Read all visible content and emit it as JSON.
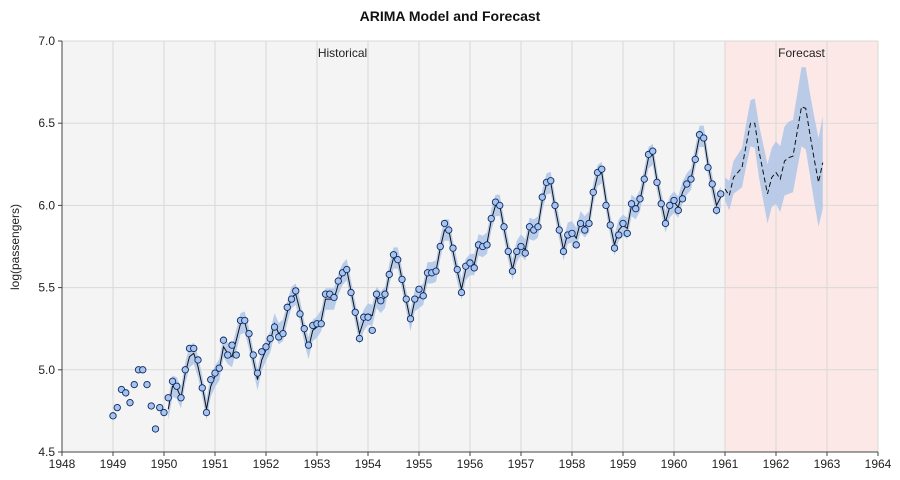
{
  "chart_data": {
    "type": "line",
    "title": "ARIMA Model and Forecast",
    "xlabel": "",
    "ylabel": "log(passengers)",
    "xlim": [
      1948,
      1964
    ],
    "ylim": [
      4.5,
      7.0
    ],
    "x_ticks": [
      "1948",
      "1949",
      "1950",
      "1951",
      "1952",
      "1953",
      "1954",
      "1955",
      "1956",
      "1957",
      "1958",
      "1959",
      "1960",
      "1961",
      "1962",
      "1963",
      "1964"
    ],
    "y_ticks": [
      "4.5",
      "5.0",
      "5.5",
      "6.0",
      "6.5",
      "7.0"
    ],
    "grid": true,
    "colors": {
      "historical_bg": "#f4f4f4",
      "forecast_bg": "#fde8e8",
      "band": "#aec6e8",
      "points_stroke": "#0b2a66",
      "points_fill": "#a9c4ec",
      "fit_line": "#111111",
      "forecast_line": "#111111",
      "grid": "#d9d9d9"
    },
    "regions": [
      {
        "label": "Historical",
        "from": 1948,
        "to": 1961
      },
      {
        "label": "Forecast",
        "from": 1961,
        "to": 1964
      }
    ],
    "start": [
      1949,
      1
    ],
    "observed": [
      4.72,
      4.77,
      4.88,
      4.86,
      4.8,
      4.91,
      5.0,
      5.0,
      4.91,
      4.78,
      4.64,
      4.77,
      4.74,
      4.83,
      4.93,
      4.9,
      4.83,
      5.0,
      5.13,
      5.13,
      5.06,
      4.89,
      4.74,
      4.94,
      4.98,
      5.01,
      5.18,
      5.09,
      5.15,
      5.09,
      5.3,
      5.3,
      5.22,
      5.09,
      4.98,
      5.11,
      5.14,
      5.19,
      5.26,
      5.2,
      5.22,
      5.38,
      5.43,
      5.48,
      5.34,
      5.25,
      5.15,
      5.27,
      5.28,
      5.28,
      5.46,
      5.46,
      5.44,
      5.54,
      5.59,
      5.61,
      5.47,
      5.35,
      5.19,
      5.32,
      5.32,
      5.24,
      5.46,
      5.42,
      5.46,
      5.58,
      5.7,
      5.67,
      5.55,
      5.43,
      5.31,
      5.43,
      5.49,
      5.45,
      5.59,
      5.59,
      5.6,
      5.75,
      5.89,
      5.85,
      5.74,
      5.61,
      5.47,
      5.63,
      5.65,
      5.62,
      5.76,
      5.75,
      5.76,
      5.92,
      6.02,
      6.0,
      5.87,
      5.72,
      5.6,
      5.72,
      5.75,
      5.71,
      5.87,
      5.85,
      5.87,
      6.05,
      6.14,
      6.15,
      6.0,
      5.85,
      5.72,
      5.82,
      5.83,
      5.76,
      5.89,
      5.85,
      5.89,
      6.08,
      6.2,
      6.22,
      6.0,
      5.88,
      5.74,
      5.82,
      5.89,
      5.83,
      6.01,
      5.98,
      6.04,
      6.16,
      6.31,
      6.33,
      6.14,
      6.01,
      5.89,
      6.0,
      6.03,
      5.97,
      6.04,
      6.13,
      6.16,
      6.28,
      6.43,
      6.41,
      6.23,
      6.13,
      5.97,
      6.07
    ],
    "fitted": [
      null,
      null,
      null,
      null,
      null,
      null,
      null,
      null,
      null,
      null,
      null,
      null,
      null,
      4.76,
      4.9,
      4.89,
      4.83,
      4.98,
      5.08,
      5.1,
      5.02,
      4.9,
      4.76,
      4.9,
      4.96,
      5.0,
      5.14,
      5.1,
      5.08,
      5.18,
      5.28,
      5.29,
      5.19,
      5.06,
      4.94,
      5.06,
      5.12,
      5.17,
      5.28,
      5.22,
      5.24,
      5.35,
      5.44,
      5.46,
      5.36,
      5.23,
      5.13,
      5.24,
      5.26,
      5.3,
      5.43,
      5.43,
      5.43,
      5.52,
      5.58,
      5.61,
      5.48,
      5.35,
      5.22,
      5.3,
      5.34,
      5.33,
      5.44,
      5.41,
      5.44,
      5.58,
      5.68,
      5.68,
      5.55,
      5.42,
      5.3,
      5.42,
      5.44,
      5.46,
      5.59,
      5.59,
      5.6,
      5.74,
      5.85,
      5.85,
      5.72,
      5.6,
      5.49,
      5.61,
      5.64,
      5.64,
      5.76,
      5.75,
      5.77,
      5.91,
      6.0,
      6.0,
      5.86,
      5.73,
      5.61,
      5.72,
      5.76,
      5.73,
      5.86,
      5.85,
      5.87,
      6.03,
      6.13,
      6.14,
      5.99,
      5.86,
      5.73,
      5.83,
      5.84,
      5.8,
      5.9,
      5.87,
      5.9,
      6.07,
      6.18,
      6.2,
      6.03,
      5.88,
      5.76,
      5.85,
      5.88,
      5.86,
      6.0,
      5.98,
      6.03,
      6.16,
      6.29,
      6.31,
      6.15,
      6.02,
      5.9,
      5.99,
      6.02,
      5.99,
      6.08,
      6.13,
      6.16,
      6.29,
      6.42,
      6.42,
      6.25,
      6.12,
      6.0,
      6.05
    ],
    "band_halfwidth": 0.065,
    "forecast_start": [
      1961,
      1
    ],
    "forecast": [
      6.1,
      6.06,
      6.17,
      6.2,
      6.23,
      6.37,
      6.5,
      6.5,
      6.33,
      6.2,
      6.07,
      6.17,
      6.2,
      6.16,
      6.27,
      6.29,
      6.3,
      6.45,
      6.6,
      6.59,
      6.43,
      6.28,
      6.14,
      6.26
    ],
    "forecast_halfwidth": [
      0.07,
      0.09,
      0.1,
      0.11,
      0.12,
      0.13,
      0.14,
      0.15,
      0.16,
      0.17,
      0.18,
      0.18,
      0.19,
      0.2,
      0.21,
      0.22,
      0.22,
      0.23,
      0.24,
      0.25,
      0.25,
      0.26,
      0.27,
      0.28
    ]
  }
}
